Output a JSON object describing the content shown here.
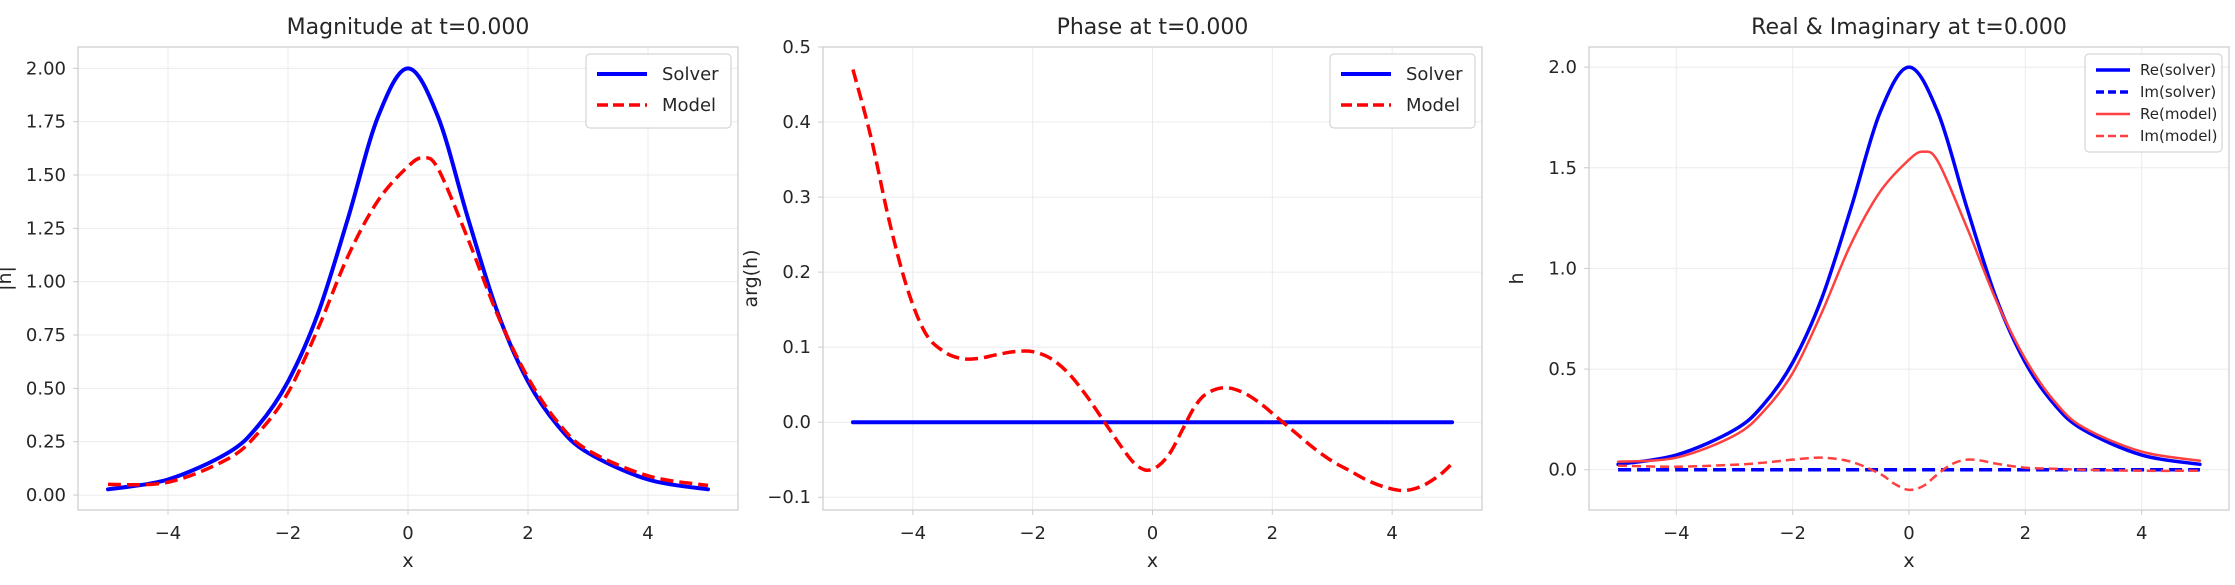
{
  "chart_data": [
    {
      "type": "line",
      "title": "Magnitude at t=0.000",
      "xlabel": "x",
      "ylabel": "|h|",
      "xlim": [
        -5.5,
        5.5
      ],
      "ylim": [
        -0.07,
        2.1
      ],
      "xticks": [
        -4,
        -2,
        0,
        2,
        4
      ],
      "xtick_labels": [
        "−4",
        "−2",
        "0",
        "2",
        "4"
      ],
      "yticks": [
        0,
        0.25,
        0.5,
        0.75,
        1.0,
        1.25,
        1.5,
        1.75,
        2.0
      ],
      "ytick_labels": [
        "0.00",
        "0.25",
        "0.50",
        "0.75",
        "1.00",
        "1.25",
        "1.50",
        "1.75",
        "2.00"
      ],
      "grid": true,
      "legend": "top-right",
      "series": [
        {
          "name": "Solver",
          "color": "#0000ff",
          "style": "solid",
          "width": 4,
          "x": [
            -5,
            -4,
            -3,
            -2.5,
            -2,
            -1.5,
            -1,
            -0.5,
            0,
            0.5,
            1,
            1.5,
            2,
            2.5,
            3,
            4,
            5
          ],
          "y": [
            0.027,
            0.073,
            0.198,
            0.324,
            0.532,
            0.851,
            1.297,
            1.773,
            2.0,
            1.773,
            1.297,
            0.851,
            0.532,
            0.324,
            0.198,
            0.073,
            0.027
          ]
        },
        {
          "name": "Model",
          "color": "#ff0000",
          "style": "dashed",
          "width": 3.5,
          "x": [
            -5,
            -4,
            -3,
            -2.5,
            -2,
            -1.5,
            -1,
            -0.5,
            0,
            0.25,
            0.5,
            1,
            1.5,
            2,
            2.5,
            3,
            4,
            5
          ],
          "y": [
            0.05,
            0.06,
            0.17,
            0.29,
            0.48,
            0.78,
            1.12,
            1.38,
            1.54,
            1.58,
            1.53,
            1.2,
            0.84,
            0.55,
            0.34,
            0.21,
            0.09,
            0.045
          ]
        }
      ]
    },
    {
      "type": "line",
      "title": "Phase at t=0.000",
      "xlabel": "x",
      "ylabel": "arg(h)",
      "xlim": [
        -5.5,
        5.5
      ],
      "ylim": [
        -0.117,
        0.5
      ],
      "xticks": [
        -4,
        -2,
        0,
        2,
        4
      ],
      "xtick_labels": [
        "−4",
        "−2",
        "0",
        "2",
        "4"
      ],
      "yticks": [
        -0.1,
        0.0,
        0.1,
        0.2,
        0.3,
        0.4,
        0.5
      ],
      "ytick_labels": [
        "−0.1",
        "0.0",
        "0.1",
        "0.2",
        "0.3",
        "0.4",
        "0.5"
      ],
      "grid": true,
      "legend": "top-right",
      "series": [
        {
          "name": "Solver",
          "color": "#0000ff",
          "style": "solid",
          "width": 4,
          "x": [
            -5,
            5
          ],
          "y": [
            0,
            0
          ]
        },
        {
          "name": "Model",
          "color": "#ff0000",
          "style": "dashed",
          "width": 3.5,
          "x": [
            -5,
            -4.7,
            -4.4,
            -4.1,
            -3.8,
            -3.5,
            -3.2,
            -2.9,
            -2.6,
            -2.3,
            -2.0,
            -1.7,
            -1.4,
            -1.1,
            -0.8,
            -0.5,
            -0.3,
            -0.1,
            0.1,
            0.3,
            0.5,
            0.7,
            0.9,
            1.2,
            1.5,
            1.8,
            2.1,
            2.4,
            2.7,
            3.0,
            3.3,
            3.6,
            3.9,
            4.2,
            4.5,
            4.8,
            5.0
          ],
          "y": [
            0.47,
            0.38,
            0.27,
            0.18,
            0.12,
            0.095,
            0.085,
            0.085,
            0.09,
            0.094,
            0.094,
            0.085,
            0.065,
            0.035,
            0.0,
            -0.035,
            -0.055,
            -0.064,
            -0.058,
            -0.04,
            -0.01,
            0.02,
            0.038,
            0.046,
            0.04,
            0.025,
            0.005,
            -0.015,
            -0.035,
            -0.052,
            -0.065,
            -0.078,
            -0.087,
            -0.091,
            -0.085,
            -0.07,
            -0.055
          ]
        }
      ]
    },
    {
      "type": "line",
      "title": "Real & Imaginary at t=0.000",
      "xlabel": "x",
      "ylabel": "h",
      "xlim": [
        -5.5,
        5.5
      ],
      "ylim": [
        -0.2,
        2.1
      ],
      "xticks": [
        -4,
        -2,
        0,
        2,
        4
      ],
      "xtick_labels": [
        "−4",
        "−2",
        "0",
        "2",
        "4"
      ],
      "yticks": [
        0,
        0.5,
        1.0,
        1.5,
        2.0
      ],
      "ytick_labels": [
        "0.0",
        "0.5",
        "1.0",
        "1.5",
        "2.0"
      ],
      "grid": true,
      "legend": "top-right",
      "series": [
        {
          "name": "Re(solver)",
          "color": "#0000ff",
          "style": "solid",
          "width": 3.5,
          "x": [
            -5,
            -4,
            -3,
            -2.5,
            -2,
            -1.5,
            -1,
            -0.5,
            0,
            0.5,
            1,
            1.5,
            2,
            2.5,
            3,
            4,
            5
          ],
          "y": [
            0.027,
            0.073,
            0.198,
            0.324,
            0.532,
            0.851,
            1.297,
            1.773,
            2.0,
            1.773,
            1.297,
            0.851,
            0.532,
            0.324,
            0.198,
            0.073,
            0.027
          ]
        },
        {
          "name": "Im(solver)",
          "color": "#0000ff",
          "style": "dashed",
          "width": 3.5,
          "x": [
            -5,
            5
          ],
          "y": [
            0,
            0
          ]
        },
        {
          "name": "Re(model)",
          "color": "#ff4040",
          "style": "solid",
          "width": 2.5,
          "x": [
            -5,
            -4,
            -3,
            -2.5,
            -2,
            -1.5,
            -1,
            -0.5,
            0,
            0.25,
            0.5,
            1,
            1.5,
            2,
            2.5,
            3,
            4,
            5
          ],
          "y": [
            0.04,
            0.06,
            0.17,
            0.29,
            0.48,
            0.78,
            1.12,
            1.38,
            1.54,
            1.58,
            1.53,
            1.2,
            0.84,
            0.55,
            0.34,
            0.21,
            0.09,
            0.045
          ]
        },
        {
          "name": "Im(model)",
          "color": "#ff4040",
          "style": "dashed",
          "width": 2.5,
          "x": [
            -5,
            -4,
            -3,
            -2.5,
            -2,
            -1.5,
            -1,
            -0.5,
            -0.25,
            0,
            0.25,
            0.5,
            0.75,
            1.0,
            1.25,
            1.5,
            2,
            2.5,
            3,
            4,
            5
          ],
          "y": [
            0.02,
            0.015,
            0.025,
            0.035,
            0.05,
            0.06,
            0.04,
            -0.02,
            -0.07,
            -0.1,
            -0.08,
            -0.02,
            0.03,
            0.05,
            0.045,
            0.03,
            0.01,
            0.005,
            0.0,
            -0.005,
            -0.005
          ]
        }
      ]
    }
  ]
}
